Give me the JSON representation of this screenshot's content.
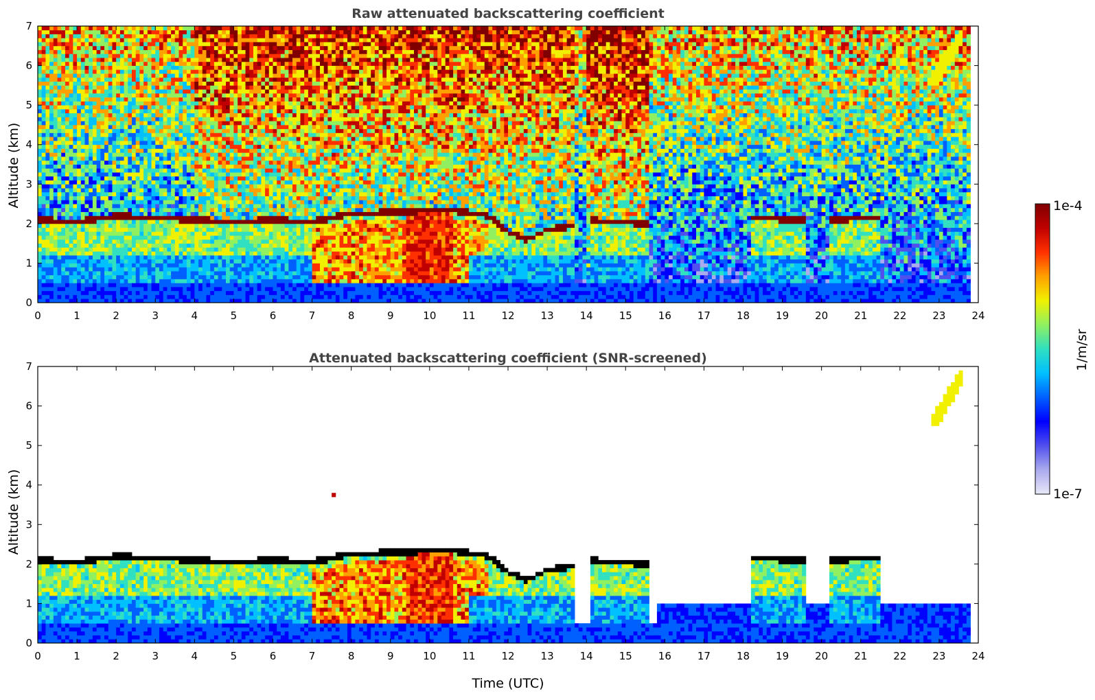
{
  "chart_data": [
    {
      "type": "heatmap",
      "title": "Raw attenuated backscattering coefficient",
      "xlabel": "",
      "ylabel": "Altitude (km)",
      "xlim": [
        0,
        24
      ],
      "ylim": [
        0,
        7
      ],
      "xticks": [
        "0",
        "1",
        "2",
        "3",
        "4",
        "5",
        "6",
        "7",
        "8",
        "9",
        "10",
        "11",
        "12",
        "13",
        "14",
        "15",
        "16",
        "17",
        "18",
        "19",
        "20",
        "21",
        "22",
        "23",
        "24"
      ],
      "yticks": [
        "0",
        "1",
        "2",
        "3",
        "4",
        "5",
        "6",
        "7"
      ],
      "data_end_hour": 23.8,
      "features": {
        "cloud_top_layer": [
          [
            0,
            2.1
          ],
          [
            1,
            2.05
          ],
          [
            2,
            2.2
          ],
          [
            3,
            2.15
          ],
          [
            4,
            2.1
          ],
          [
            5,
            2.05
          ],
          [
            6,
            2.1
          ],
          [
            7,
            2.05
          ],
          [
            8,
            2.25
          ],
          [
            10.5,
            2.35
          ],
          [
            11.5,
            2.2
          ],
          [
            12,
            1.8
          ],
          [
            12.5,
            1.6
          ],
          [
            13,
            1.85
          ],
          [
            13.7,
            1.95
          ],
          [
            14.1,
            2.1
          ],
          [
            14.6,
            2.05
          ],
          [
            15.6,
            2.0
          ],
          [
            18.2,
            2.15
          ],
          [
            19.4,
            2.1
          ],
          [
            20.2,
            2.1
          ],
          [
            21.5,
            2.15
          ]
        ],
        "aerosol_plume": {
          "x": [
            7.5,
            7.6
          ],
          "y": 3.75
        },
        "high_cloud": {
          "x": [
            22.8,
            23.6
          ],
          "y": [
            5.5,
            6.9
          ]
        }
      }
    },
    {
      "type": "heatmap",
      "title": "Attenuated backscattering coefficient (SNR-screened)",
      "xlabel": "Time (UTC)",
      "ylabel": "Altitude (km)",
      "xlim": [
        0,
        24
      ],
      "ylim": [
        0,
        7
      ],
      "xticks": [
        "0",
        "1",
        "2",
        "3",
        "4",
        "5",
        "6",
        "7",
        "8",
        "9",
        "10",
        "11",
        "12",
        "13",
        "14",
        "15",
        "16",
        "17",
        "18",
        "19",
        "20",
        "21",
        "22",
        "23",
        "24"
      ],
      "yticks": [
        "0",
        "1",
        "2",
        "3",
        "4",
        "5",
        "6",
        "7"
      ],
      "data_end_hour": 23.8
    }
  ],
  "colorbar": {
    "label": "1/m/sr",
    "max_label": "1e-4",
    "min_label": "1e-7",
    "colormap": [
      "#e8e8f8",
      "#aaaaee",
      "#5050ee",
      "#0000ff",
      "#0060ff",
      "#00c0ff",
      "#30e0c0",
      "#90f060",
      "#f0f000",
      "#ffa000",
      "#ff3000",
      "#c00000",
      "#800000"
    ]
  }
}
